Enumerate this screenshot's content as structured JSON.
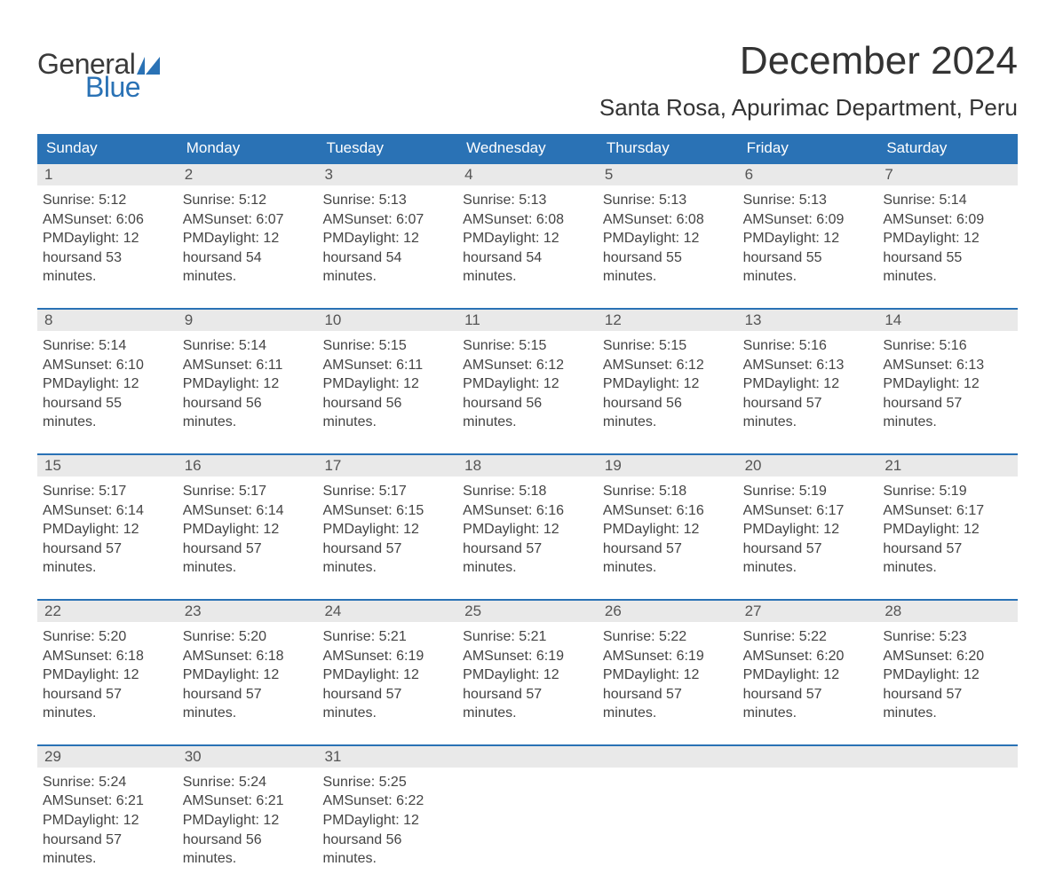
{
  "brand": {
    "word1": "General",
    "word2": "Blue",
    "shape_color": "#2a72b5"
  },
  "title": "December 2024",
  "location": "Santa Rosa, Apurimac Department, Peru",
  "colors": {
    "header_bg": "#2a72b5",
    "header_text": "#ffffff",
    "daynum_bg": "#e9e9e9",
    "text": "#444444",
    "rule": "#2a72b5"
  },
  "day_names": [
    "Sunday",
    "Monday",
    "Tuesday",
    "Wednesday",
    "Thursday",
    "Friday",
    "Saturday"
  ],
  "weeks": [
    [
      {
        "n": "1",
        "sunrise": "Sunrise: 5:12 AM",
        "sunset": "Sunset: 6:06 PM",
        "d1": "Daylight: 12 hours",
        "d2": "and 53 minutes."
      },
      {
        "n": "2",
        "sunrise": "Sunrise: 5:12 AM",
        "sunset": "Sunset: 6:07 PM",
        "d1": "Daylight: 12 hours",
        "d2": "and 54 minutes."
      },
      {
        "n": "3",
        "sunrise": "Sunrise: 5:13 AM",
        "sunset": "Sunset: 6:07 PM",
        "d1": "Daylight: 12 hours",
        "d2": "and 54 minutes."
      },
      {
        "n": "4",
        "sunrise": "Sunrise: 5:13 AM",
        "sunset": "Sunset: 6:08 PM",
        "d1": "Daylight: 12 hours",
        "d2": "and 54 minutes."
      },
      {
        "n": "5",
        "sunrise": "Sunrise: 5:13 AM",
        "sunset": "Sunset: 6:08 PM",
        "d1": "Daylight: 12 hours",
        "d2": "and 55 minutes."
      },
      {
        "n": "6",
        "sunrise": "Sunrise: 5:13 AM",
        "sunset": "Sunset: 6:09 PM",
        "d1": "Daylight: 12 hours",
        "d2": "and 55 minutes."
      },
      {
        "n": "7",
        "sunrise": "Sunrise: 5:14 AM",
        "sunset": "Sunset: 6:09 PM",
        "d1": "Daylight: 12 hours",
        "d2": "and 55 minutes."
      }
    ],
    [
      {
        "n": "8",
        "sunrise": "Sunrise: 5:14 AM",
        "sunset": "Sunset: 6:10 PM",
        "d1": "Daylight: 12 hours",
        "d2": "and 55 minutes."
      },
      {
        "n": "9",
        "sunrise": "Sunrise: 5:14 AM",
        "sunset": "Sunset: 6:11 PM",
        "d1": "Daylight: 12 hours",
        "d2": "and 56 minutes."
      },
      {
        "n": "10",
        "sunrise": "Sunrise: 5:15 AM",
        "sunset": "Sunset: 6:11 PM",
        "d1": "Daylight: 12 hours",
        "d2": "and 56 minutes."
      },
      {
        "n": "11",
        "sunrise": "Sunrise: 5:15 AM",
        "sunset": "Sunset: 6:12 PM",
        "d1": "Daylight: 12 hours",
        "d2": "and 56 minutes."
      },
      {
        "n": "12",
        "sunrise": "Sunrise: 5:15 AM",
        "sunset": "Sunset: 6:12 PM",
        "d1": "Daylight: 12 hours",
        "d2": "and 56 minutes."
      },
      {
        "n": "13",
        "sunrise": "Sunrise: 5:16 AM",
        "sunset": "Sunset: 6:13 PM",
        "d1": "Daylight: 12 hours",
        "d2": "and 57 minutes."
      },
      {
        "n": "14",
        "sunrise": "Sunrise: 5:16 AM",
        "sunset": "Sunset: 6:13 PM",
        "d1": "Daylight: 12 hours",
        "d2": "and 57 minutes."
      }
    ],
    [
      {
        "n": "15",
        "sunrise": "Sunrise: 5:17 AM",
        "sunset": "Sunset: 6:14 PM",
        "d1": "Daylight: 12 hours",
        "d2": "and 57 minutes."
      },
      {
        "n": "16",
        "sunrise": "Sunrise: 5:17 AM",
        "sunset": "Sunset: 6:14 PM",
        "d1": "Daylight: 12 hours",
        "d2": "and 57 minutes."
      },
      {
        "n": "17",
        "sunrise": "Sunrise: 5:17 AM",
        "sunset": "Sunset: 6:15 PM",
        "d1": "Daylight: 12 hours",
        "d2": "and 57 minutes."
      },
      {
        "n": "18",
        "sunrise": "Sunrise: 5:18 AM",
        "sunset": "Sunset: 6:16 PM",
        "d1": "Daylight: 12 hours",
        "d2": "and 57 minutes."
      },
      {
        "n": "19",
        "sunrise": "Sunrise: 5:18 AM",
        "sunset": "Sunset: 6:16 PM",
        "d1": "Daylight: 12 hours",
        "d2": "and 57 minutes."
      },
      {
        "n": "20",
        "sunrise": "Sunrise: 5:19 AM",
        "sunset": "Sunset: 6:17 PM",
        "d1": "Daylight: 12 hours",
        "d2": "and 57 minutes."
      },
      {
        "n": "21",
        "sunrise": "Sunrise: 5:19 AM",
        "sunset": "Sunset: 6:17 PM",
        "d1": "Daylight: 12 hours",
        "d2": "and 57 minutes."
      }
    ],
    [
      {
        "n": "22",
        "sunrise": "Sunrise: 5:20 AM",
        "sunset": "Sunset: 6:18 PM",
        "d1": "Daylight: 12 hours",
        "d2": "and 57 minutes."
      },
      {
        "n": "23",
        "sunrise": "Sunrise: 5:20 AM",
        "sunset": "Sunset: 6:18 PM",
        "d1": "Daylight: 12 hours",
        "d2": "and 57 minutes."
      },
      {
        "n": "24",
        "sunrise": "Sunrise: 5:21 AM",
        "sunset": "Sunset: 6:19 PM",
        "d1": "Daylight: 12 hours",
        "d2": "and 57 minutes."
      },
      {
        "n": "25",
        "sunrise": "Sunrise: 5:21 AM",
        "sunset": "Sunset: 6:19 PM",
        "d1": "Daylight: 12 hours",
        "d2": "and 57 minutes."
      },
      {
        "n": "26",
        "sunrise": "Sunrise: 5:22 AM",
        "sunset": "Sunset: 6:19 PM",
        "d1": "Daylight: 12 hours",
        "d2": "and 57 minutes."
      },
      {
        "n": "27",
        "sunrise": "Sunrise: 5:22 AM",
        "sunset": "Sunset: 6:20 PM",
        "d1": "Daylight: 12 hours",
        "d2": "and 57 minutes."
      },
      {
        "n": "28",
        "sunrise": "Sunrise: 5:23 AM",
        "sunset": "Sunset: 6:20 PM",
        "d1": "Daylight: 12 hours",
        "d2": "and 57 minutes."
      }
    ],
    [
      {
        "n": "29",
        "sunrise": "Sunrise: 5:24 AM",
        "sunset": "Sunset: 6:21 PM",
        "d1": "Daylight: 12 hours",
        "d2": "and 57 minutes."
      },
      {
        "n": "30",
        "sunrise": "Sunrise: 5:24 AM",
        "sunset": "Sunset: 6:21 PM",
        "d1": "Daylight: 12 hours",
        "d2": "and 56 minutes."
      },
      {
        "n": "31",
        "sunrise": "Sunrise: 5:25 AM",
        "sunset": "Sunset: 6:22 PM",
        "d1": "Daylight: 12 hours",
        "d2": "and 56 minutes."
      },
      {
        "empty": true
      },
      {
        "empty": true
      },
      {
        "empty": true
      },
      {
        "empty": true
      }
    ]
  ]
}
